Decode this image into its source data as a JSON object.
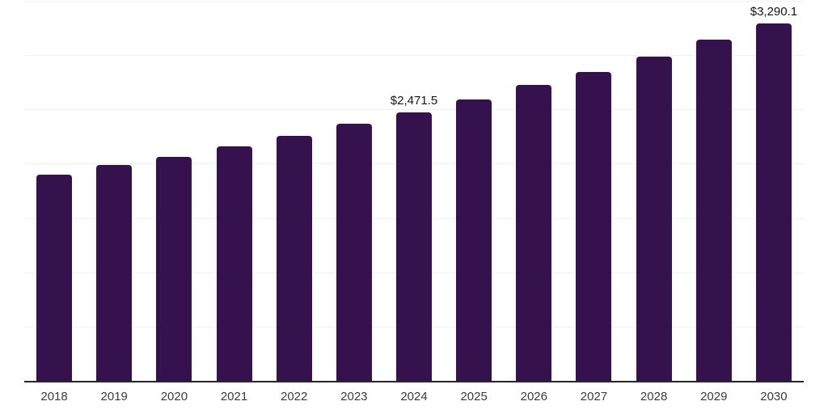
{
  "chart_data": {
    "type": "bar",
    "title": "",
    "xlabel": "",
    "ylabel": "",
    "categories": [
      "2018",
      "2019",
      "2020",
      "2021",
      "2022",
      "2023",
      "2024",
      "2025",
      "2026",
      "2027",
      "2028",
      "2029",
      "2030"
    ],
    "values": [
      1900,
      1990,
      2065,
      2160,
      2260,
      2365,
      2471.5,
      2590,
      2725,
      2845,
      2990,
      3140,
      3290.1
    ],
    "value_labels": {
      "2024": "$2,471.5",
      "2030": "$3,290.1"
    },
    "ylim": [
      0,
      3500
    ],
    "grid_step": 500,
    "grid": true,
    "legend": false,
    "colors": {
      "bar": "#35124E",
      "axis": "#262626",
      "grid": "#f0f0f0",
      "tick_label": "#3a3a3a",
      "value_label": "#141414",
      "background": "#ffffff"
    }
  }
}
